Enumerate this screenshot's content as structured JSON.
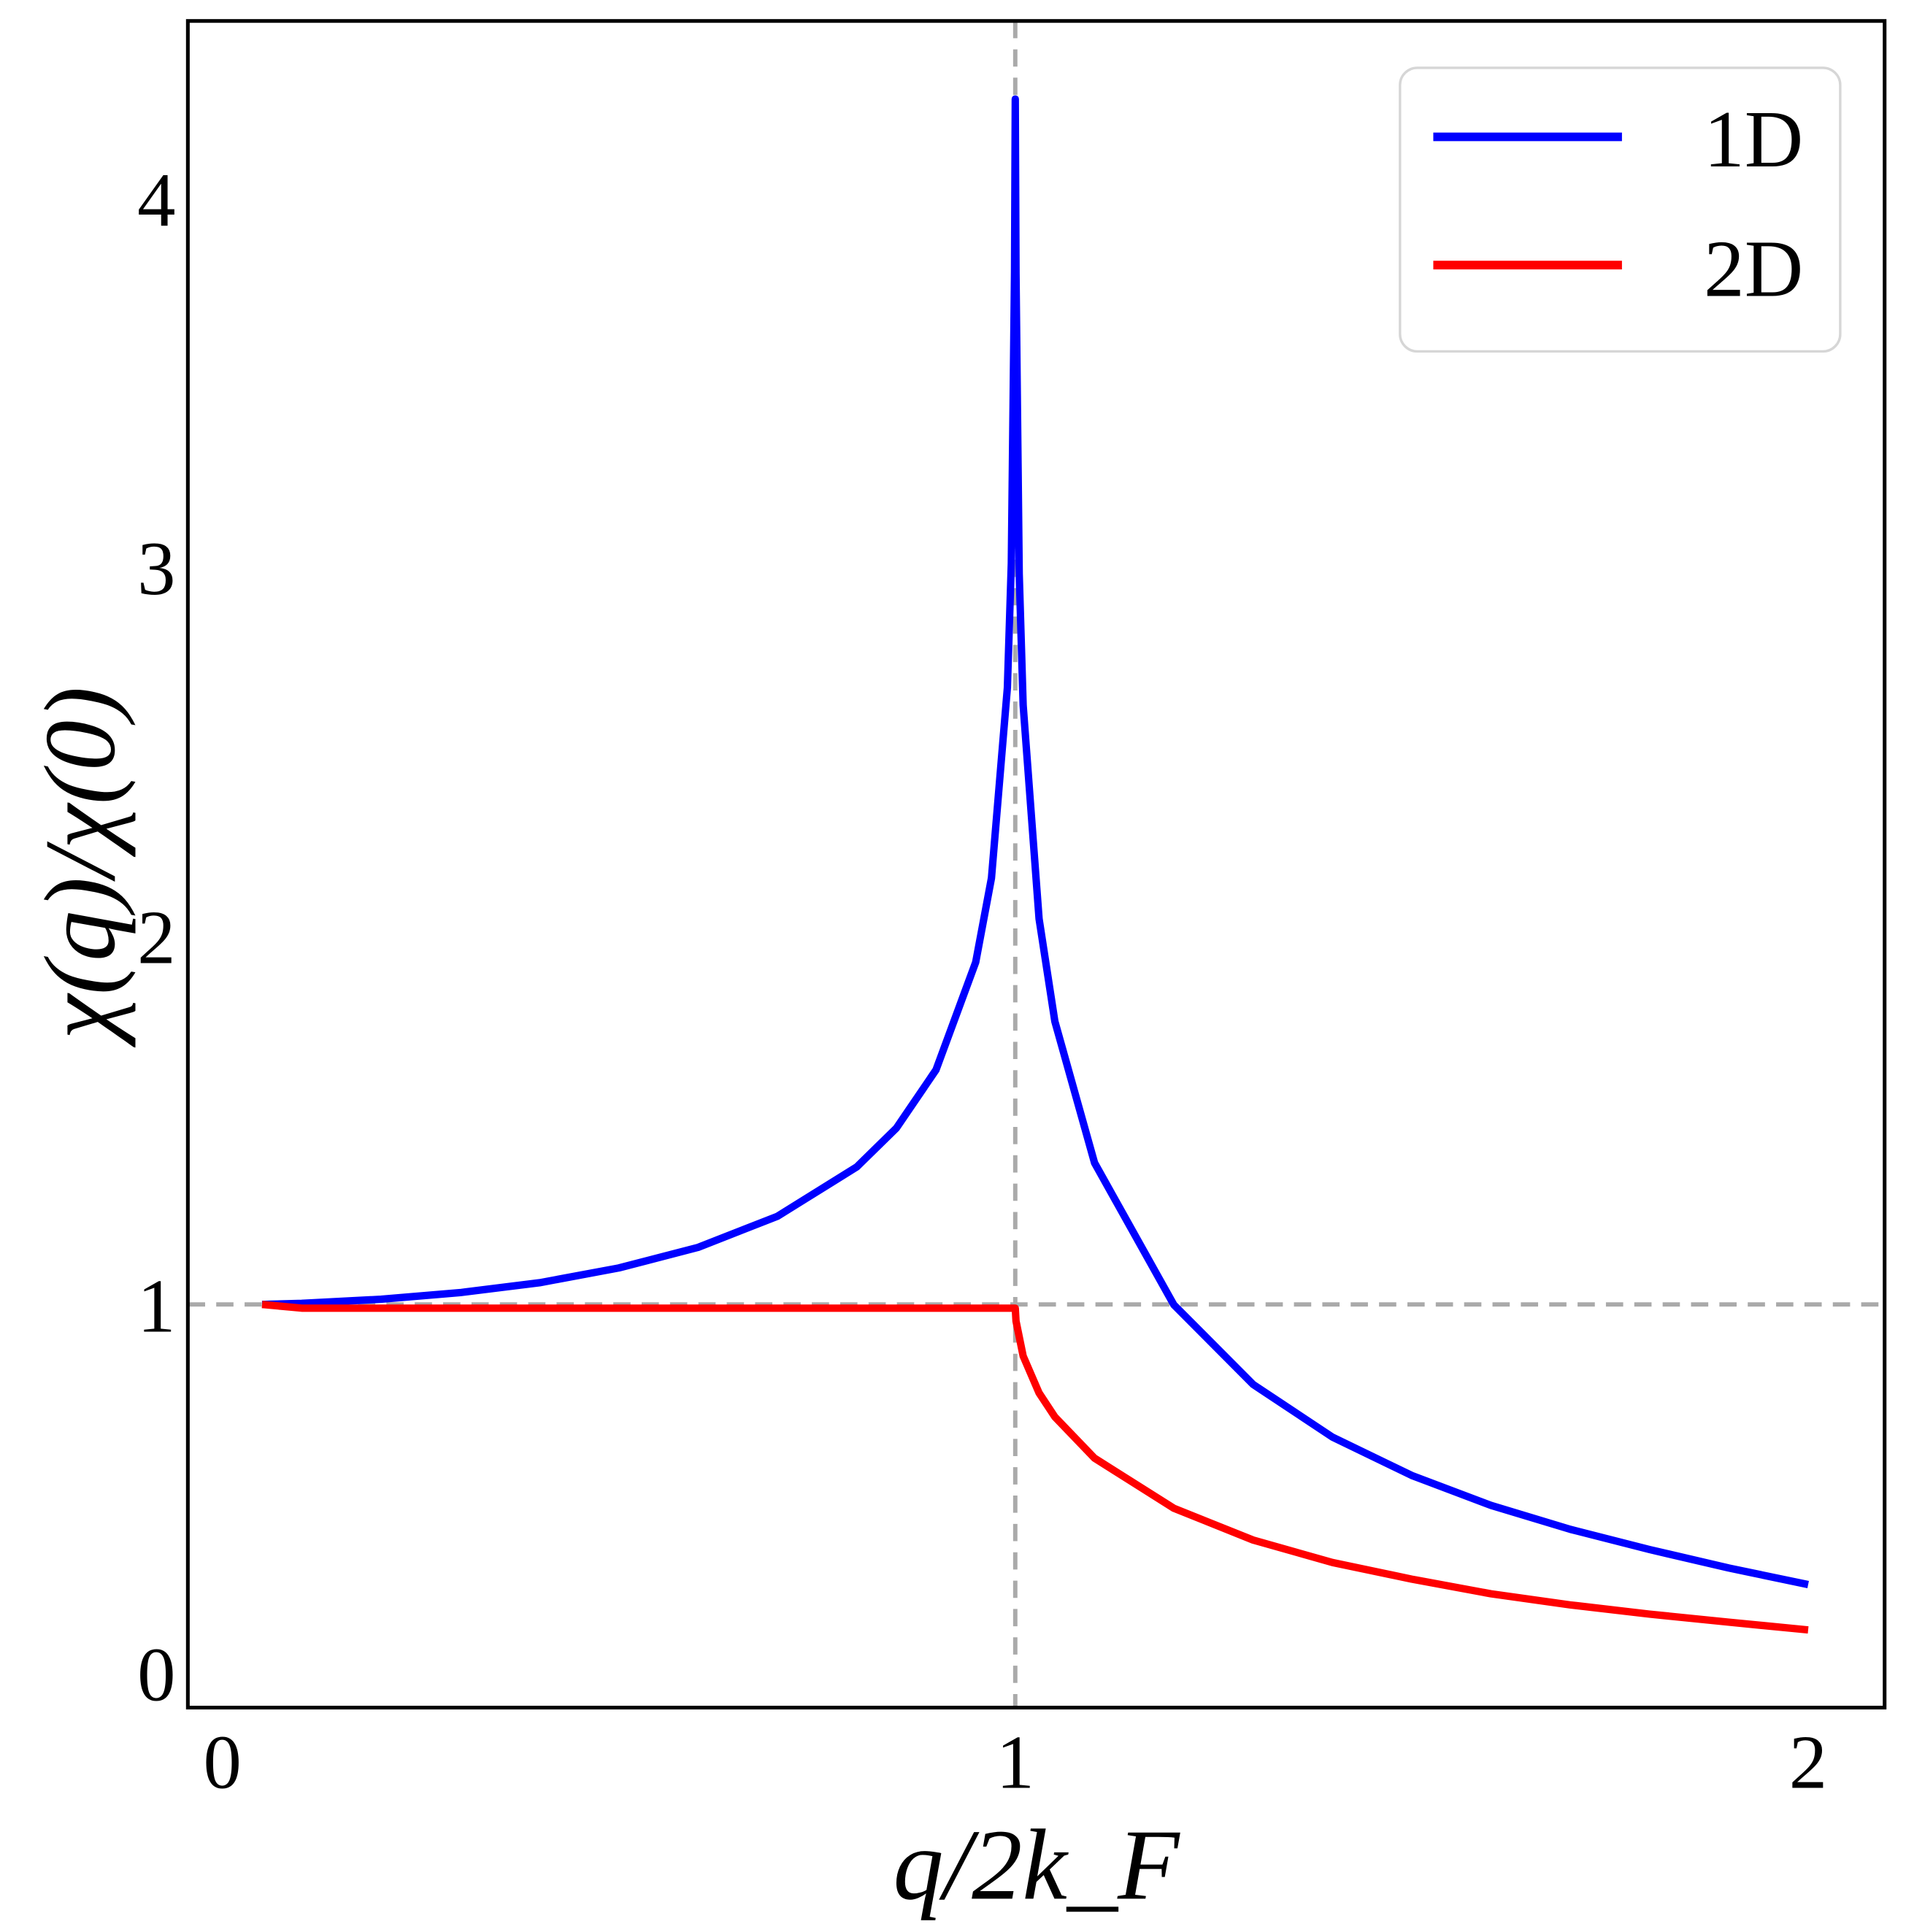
{
  "chart_data": {
    "type": "line",
    "title": "",
    "xlabel": "q/2k_F",
    "ylabel": "χ(q)/χ(0)",
    "xlim": [
      -0.044,
      2.096
    ],
    "ylim": [
      -0.09,
      4.48
    ],
    "xticks": [
      "0",
      "1",
      "2"
    ],
    "yticks": [
      "0",
      "1",
      "2",
      "3",
      "4"
    ],
    "grid": false,
    "legend": "top-right",
    "reference_lines": {
      "vertical_x": 1,
      "horizontal_y": 1,
      "color": "#aaaaaa",
      "style": "dashed"
    },
    "series": [
      {
        "name": "1D",
        "color": "#0000ff",
        "x": [
          0.05,
          0.1,
          0.2,
          0.3,
          0.4,
          0.5,
          0.6,
          0.7,
          0.8,
          0.85,
          0.9,
          0.95,
          0.97,
          0.99,
          0.995,
          0.999,
          1.0,
          1.001,
          1.005,
          1.01,
          1.03,
          1.05,
          1.1,
          1.2,
          1.3,
          1.4,
          1.5,
          1.6,
          1.7,
          1.8,
          1.9,
          2.0
        ],
        "y": [
          1.0,
          1.003,
          1.014,
          1.032,
          1.059,
          1.099,
          1.155,
          1.239,
          1.373,
          1.478,
          1.636,
          1.928,
          2.157,
          2.673,
          3.01,
          3.8,
          4.27,
          3.797,
          2.982,
          2.625,
          2.046,
          1.768,
          1.384,
          0.999,
          0.783,
          0.64,
          0.536,
          0.455,
          0.39,
          0.335,
          0.285,
          0.24
        ]
      },
      {
        "name": "2D",
        "color": "#ff0000",
        "x": [
          0.05,
          0.1,
          0.2,
          0.3,
          0.4,
          0.5,
          0.6,
          0.7,
          0.8,
          0.9,
          0.99,
          1.0,
          1.001,
          1.01,
          1.03,
          1.05,
          1.1,
          1.2,
          1.3,
          1.4,
          1.5,
          1.6,
          1.7,
          1.8,
          1.9,
          2.0
        ],
        "y": [
          1.0,
          0.99,
          0.99,
          0.99,
          0.99,
          0.99,
          0.99,
          0.99,
          0.99,
          0.99,
          0.99,
          0.99,
          0.955,
          0.86,
          0.76,
          0.695,
          0.583,
          0.447,
          0.361,
          0.3,
          0.255,
          0.215,
          0.185,
          0.16,
          0.138,
          0.117
        ]
      }
    ]
  }
}
